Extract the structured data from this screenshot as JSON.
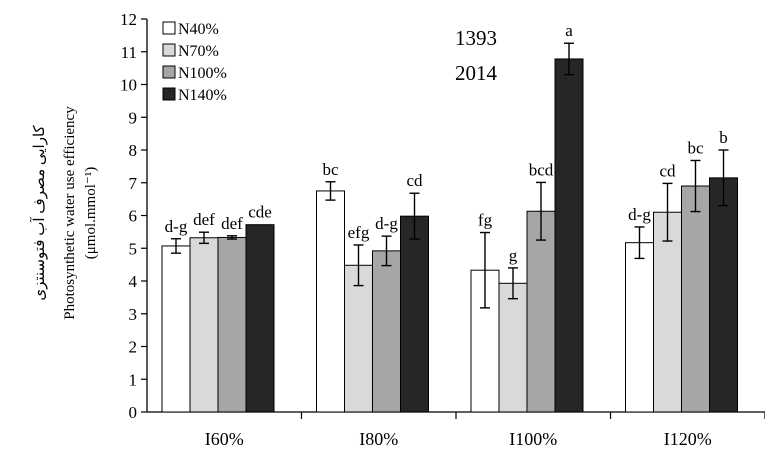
{
  "chart_data": {
    "type": "bar",
    "title": "",
    "annotations": [
      "1393",
      "2014"
    ],
    "ylabel_lines": [
      "کارایی مصرف آب فتوسنتزی",
      "Photosynthetic water use efficiency",
      "(μmol.mmol⁻¹)"
    ],
    "xlabel": "",
    "ylim": [
      0,
      12
    ],
    "yticks": [
      "0",
      "1",
      "2",
      "3",
      "4",
      "5",
      "6",
      "7",
      "8",
      "9",
      "10",
      "11",
      "12"
    ],
    "categories": [
      "I60%",
      "I80%",
      "I100%",
      "I120%"
    ],
    "legend_position": "top-left",
    "grid": false,
    "series": [
      {
        "name": "N40%",
        "color": "#ffffff",
        "values": [
          5.07,
          6.75,
          4.33,
          5.17
        ],
        "errors": [
          0.22,
          0.28,
          1.15,
          0.48
        ],
        "labels": [
          "d-g",
          "bc",
          "fg",
          "d-g"
        ]
      },
      {
        "name": "N70%",
        "color": "#d9d9d9",
        "values": [
          5.32,
          4.48,
          3.93,
          6.1
        ],
        "errors": [
          0.17,
          0.62,
          0.47,
          0.88
        ],
        "labels": [
          "def",
          "efg",
          "g",
          "cd"
        ]
      },
      {
        "name": "N100%",
        "color": "#a6a6a6",
        "values": [
          5.33,
          4.92,
          6.13,
          6.9
        ],
        "errors": [
          0.05,
          0.45,
          0.88,
          0.78
        ],
        "labels": [
          "def",
          "d-g",
          "bcd",
          "bc"
        ]
      },
      {
        "name": "N140%",
        "color": "#262626",
        "values": [
          5.72,
          5.98,
          10.78,
          7.15
        ],
        "errors": [
          0.0,
          0.7,
          0.48,
          0.85
        ],
        "labels": [
          "cde",
          "cd",
          "a",
          "b"
        ]
      }
    ]
  }
}
